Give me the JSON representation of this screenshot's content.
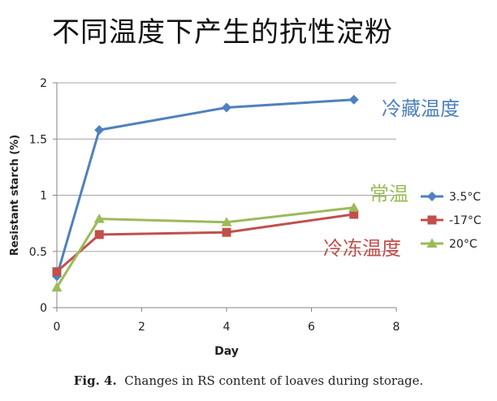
{
  "title": "不同温度下产生的抗性淀粉",
  "caption": {
    "label": "Fig. 4.",
    "text": "Changes in RS content of loaves during storage."
  },
  "annotations": [
    {
      "text": "冷藏温度",
      "color": "#4f81bd"
    },
    {
      "text": "常温",
      "color": "#9bbb59"
    },
    {
      "text": "冷冻温度",
      "color": "#c0504d"
    }
  ],
  "chart_data": {
    "type": "line",
    "xlabel": "Day",
    "ylabel": "Resistant starch (%)",
    "xlim": [
      0,
      8
    ],
    "ylim": [
      0,
      2
    ],
    "xticks": [
      0,
      2,
      4,
      6,
      8
    ],
    "yticks": [
      0,
      0.5,
      1,
      1.5,
      2
    ],
    "xtick_labels": [
      "0",
      "2",
      "4",
      "6",
      "8"
    ],
    "ytick_labels": [
      "0",
      "0.5",
      "1",
      "1.5",
      "2"
    ],
    "grid": "horizontal",
    "legend_position": "right",
    "series": [
      {
        "name": "3.5°C",
        "color": "#4f81bd",
        "marker": "diamond",
        "x": [
          0,
          1,
          4,
          7
        ],
        "y": [
          0.28,
          1.58,
          1.78,
          1.85
        ]
      },
      {
        "name": "-17°C",
        "color": "#c0504d",
        "marker": "square",
        "x": [
          0,
          1,
          4,
          7
        ],
        "y": [
          0.32,
          0.65,
          0.67,
          0.83
        ]
      },
      {
        "name": "20°C",
        "color": "#9bbb59",
        "marker": "triangle",
        "x": [
          0,
          1,
          4,
          7
        ],
        "y": [
          0.18,
          0.79,
          0.76,
          0.89
        ]
      }
    ]
  }
}
